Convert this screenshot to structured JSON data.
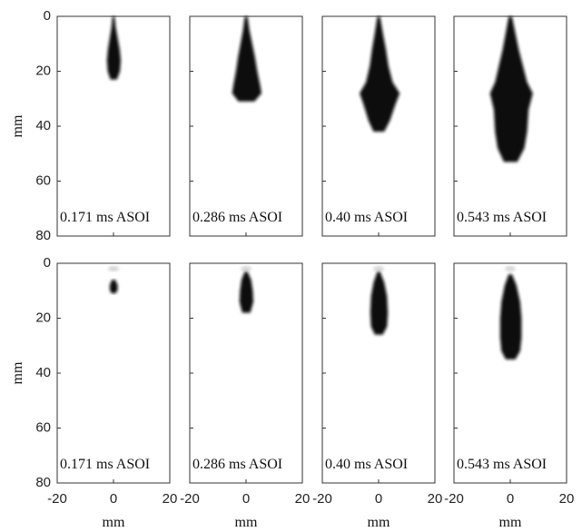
{
  "figure": {
    "y_label": "mm",
    "x_label": "mm",
    "xticks": [
      -20,
      0,
      20
    ],
    "yticks": [
      0,
      20,
      40,
      60,
      80
    ],
    "rows": [
      {
        "panels": [
          {
            "label": "0.171 ms ASOI"
          },
          {
            "label": "0.286 ms ASOI"
          },
          {
            "label": "0.40 ms ASOI"
          },
          {
            "label": "0.543 ms ASOI"
          }
        ]
      },
      {
        "panels": [
          {
            "label": "0.171 ms ASOI"
          },
          {
            "label": "0.286 ms ASOI"
          },
          {
            "label": "0.40 ms ASOI"
          },
          {
            "label": "0.543 ms ASOI"
          }
        ]
      }
    ]
  }
}
